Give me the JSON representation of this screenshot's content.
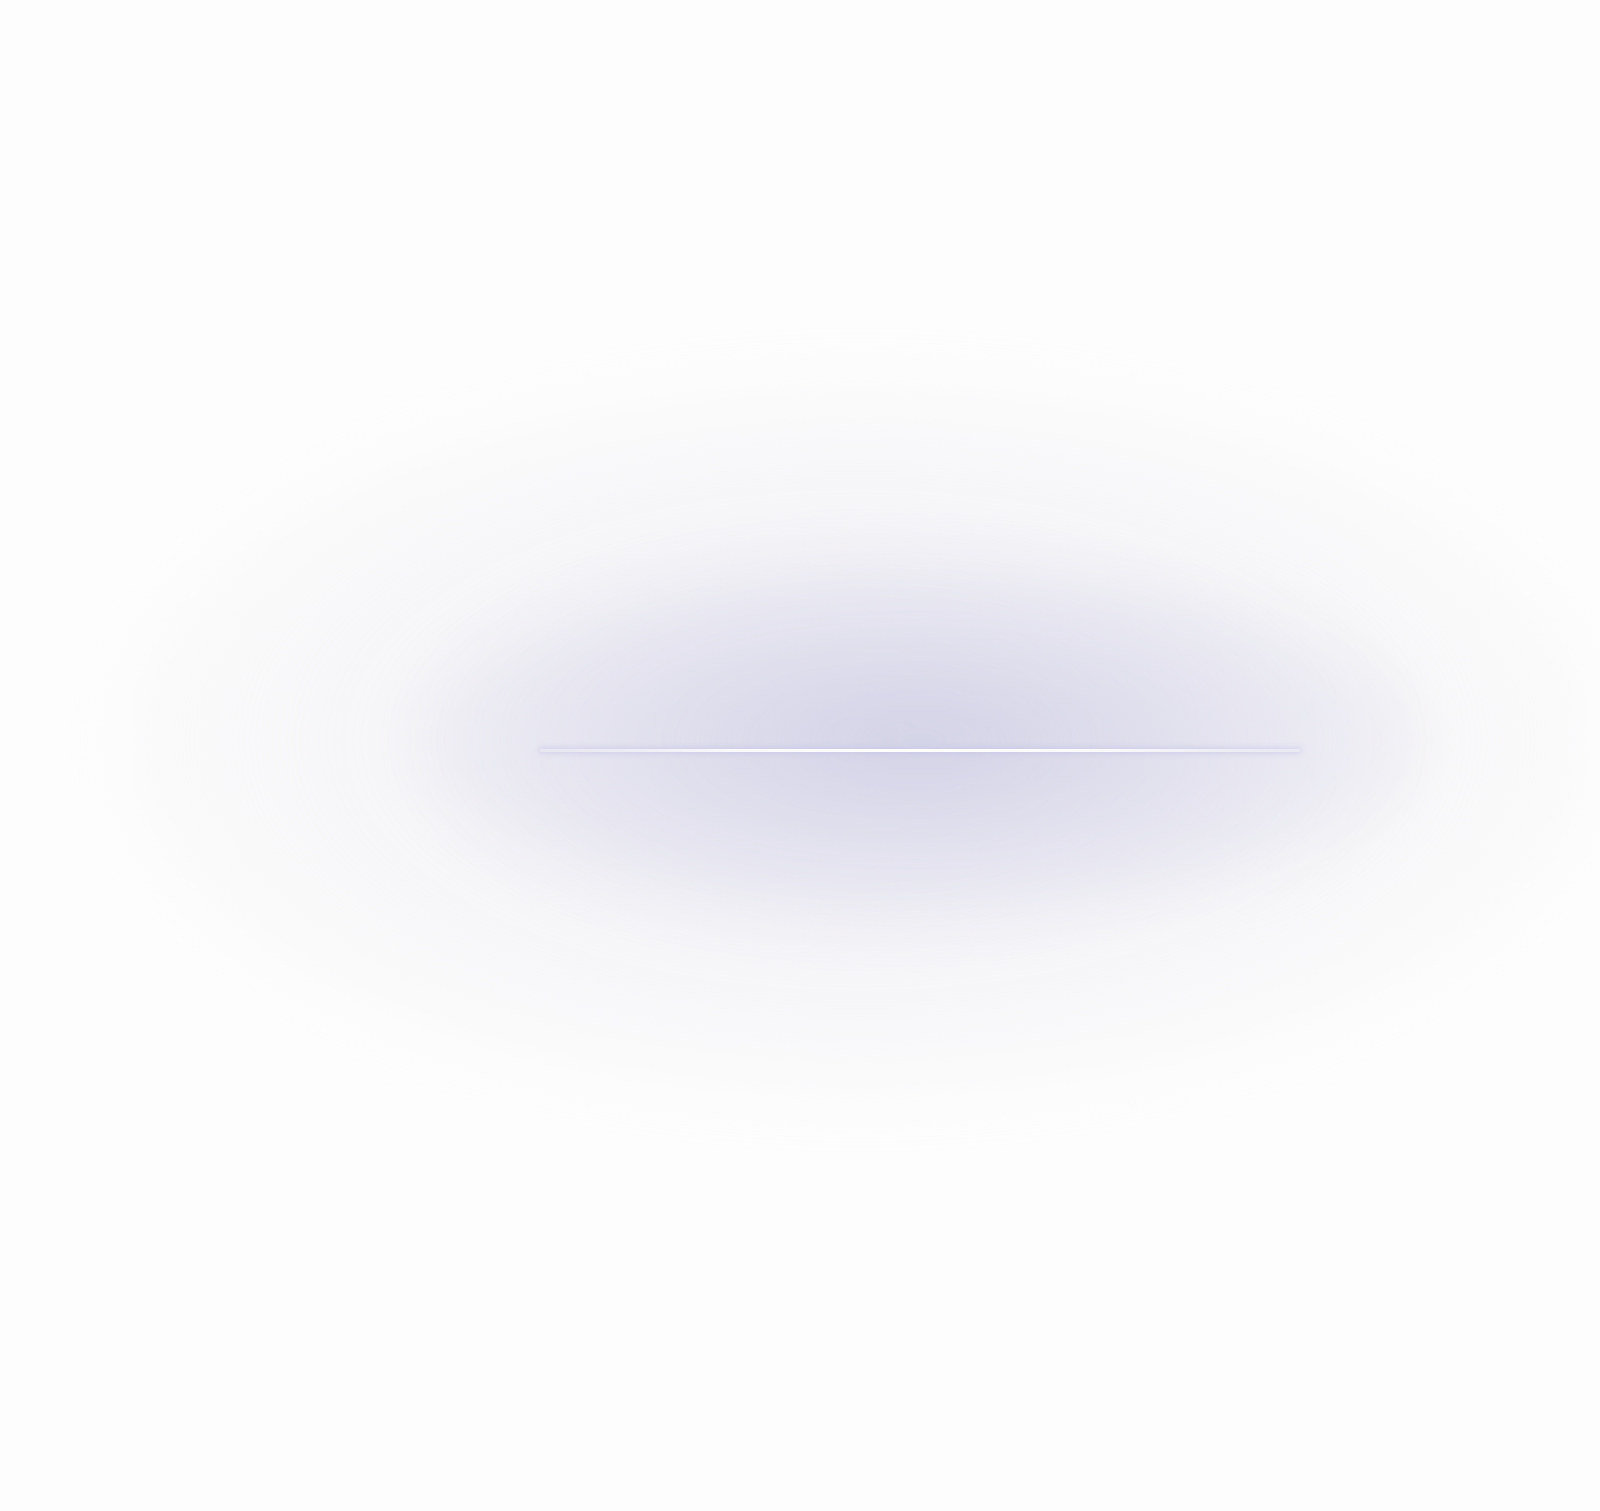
{
  "scene": {
    "background_color": "#fdfdfd",
    "glow_color": "#d4d4e8",
    "line_color": "#ffffff"
  }
}
